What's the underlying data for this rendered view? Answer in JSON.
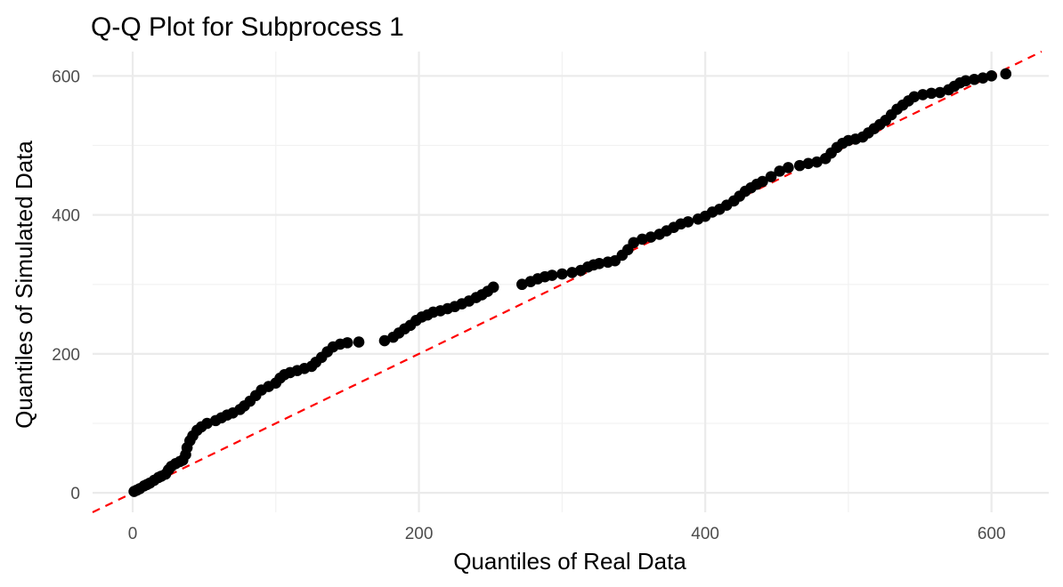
{
  "chart_data": {
    "type": "scatter",
    "title": "Q-Q Plot for Subprocess 1",
    "xlabel": "Quantiles of Real Data",
    "ylabel": "Quantiles of Simulated Data",
    "xlim": [
      -28,
      640
    ],
    "ylim": [
      -28,
      635
    ],
    "x_ticks": [
      0,
      200,
      400,
      600
    ],
    "y_ticks": [
      0,
      200,
      400,
      600
    ],
    "x_tick_labels": [
      "0",
      "200",
      "400",
      "600"
    ],
    "y_tick_labels": [
      "0",
      "200",
      "400",
      "600"
    ],
    "grid": true,
    "legend": "none",
    "reference_line": {
      "slope": 1,
      "intercept": 0,
      "color": "#ff0000",
      "style": "dashed"
    },
    "point_color": "#000000",
    "points": [
      [
        1,
        2
      ],
      [
        3,
        4
      ],
      [
        5,
        6
      ],
      [
        8,
        10
      ],
      [
        10,
        12
      ],
      [
        12,
        14
      ],
      [
        15,
        18
      ],
      [
        18,
        22
      ],
      [
        20,
        24
      ],
      [
        23,
        27
      ],
      [
        25,
        33
      ],
      [
        27,
        38
      ],
      [
        30,
        42
      ],
      [
        33,
        45
      ],
      [
        35,
        47
      ],
      [
        37,
        55
      ],
      [
        38,
        65
      ],
      [
        40,
        75
      ],
      [
        42,
        82
      ],
      [
        45,
        90
      ],
      [
        48,
        95
      ],
      [
        52,
        100
      ],
      [
        58,
        104
      ],
      [
        62,
        108
      ],
      [
        66,
        112
      ],
      [
        70,
        115
      ],
      [
        75,
        120
      ],
      [
        78,
        125
      ],
      [
        82,
        132
      ],
      [
        86,
        140
      ],
      [
        90,
        148
      ],
      [
        95,
        153
      ],
      [
        100,
        158
      ],
      [
        103,
        165
      ],
      [
        106,
        170
      ],
      [
        110,
        173
      ],
      [
        115,
        176
      ],
      [
        120,
        179
      ],
      [
        125,
        182
      ],
      [
        128,
        188
      ],
      [
        132,
        195
      ],
      [
        136,
        203
      ],
      [
        140,
        210
      ],
      [
        145,
        214
      ],
      [
        150,
        216
      ],
      [
        158,
        217
      ],
      [
        176,
        219
      ],
      [
        182,
        224
      ],
      [
        186,
        230
      ],
      [
        190,
        236
      ],
      [
        194,
        241
      ],
      [
        198,
        248
      ],
      [
        202,
        253
      ],
      [
        206,
        256
      ],
      [
        210,
        260
      ],
      [
        215,
        262
      ],
      [
        220,
        265
      ],
      [
        225,
        268
      ],
      [
        230,
        272
      ],
      [
        235,
        276
      ],
      [
        240,
        281
      ],
      [
        244,
        285
      ],
      [
        248,
        290
      ],
      [
        252,
        296
      ],
      [
        272,
        300
      ],
      [
        278,
        304
      ],
      [
        283,
        308
      ],
      [
        288,
        311
      ],
      [
        293,
        313
      ],
      [
        300,
        315
      ],
      [
        307,
        317
      ],
      [
        313,
        320
      ],
      [
        318,
        325
      ],
      [
        322,
        328
      ],
      [
        326,
        330
      ],
      [
        332,
        332
      ],
      [
        337,
        334
      ],
      [
        342,
        342
      ],
      [
        346,
        350
      ],
      [
        350,
        360
      ],
      [
        356,
        365
      ],
      [
        362,
        368
      ],
      [
        368,
        372
      ],
      [
        373,
        377
      ],
      [
        378,
        382
      ],
      [
        383,
        387
      ],
      [
        388,
        390
      ],
      [
        395,
        394
      ],
      [
        400,
        398
      ],
      [
        405,
        404
      ],
      [
        410,
        408
      ],
      [
        415,
        414
      ],
      [
        420,
        420
      ],
      [
        424,
        427
      ],
      [
        428,
        434
      ],
      [
        432,
        439
      ],
      [
        436,
        444
      ],
      [
        440,
        448
      ],
      [
        446,
        455
      ],
      [
        452,
        463
      ],
      [
        458,
        468
      ],
      [
        466,
        471
      ],
      [
        472,
        474
      ],
      [
        478,
        476
      ],
      [
        484,
        481
      ],
      [
        488,
        489
      ],
      [
        492,
        497
      ],
      [
        496,
        503
      ],
      [
        500,
        507
      ],
      [
        505,
        509
      ],
      [
        510,
        512
      ],
      [
        514,
        518
      ],
      [
        518,
        524
      ],
      [
        522,
        530
      ],
      [
        526,
        536
      ],
      [
        530,
        544
      ],
      [
        534,
        552
      ],
      [
        538,
        558
      ],
      [
        542,
        564
      ],
      [
        546,
        570
      ],
      [
        552,
        573
      ],
      [
        558,
        575
      ],
      [
        564,
        576
      ],
      [
        570,
        580
      ],
      [
        574,
        585
      ],
      [
        578,
        590
      ],
      [
        582,
        593
      ],
      [
        588,
        595
      ],
      [
        594,
        597
      ],
      [
        600,
        600
      ],
      [
        610,
        603
      ]
    ]
  }
}
